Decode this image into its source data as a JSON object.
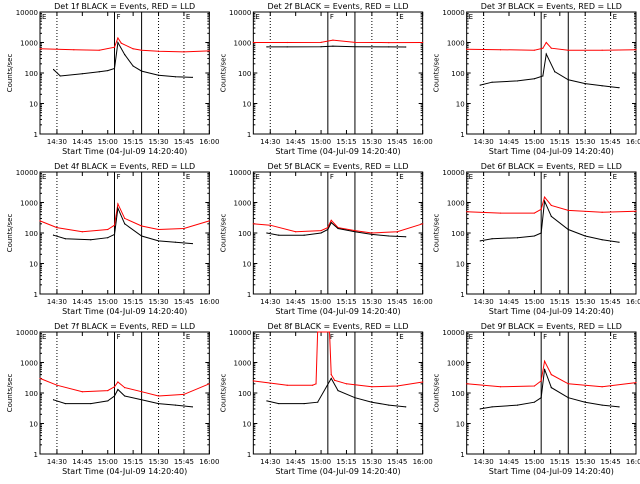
{
  "figure": {
    "grid_rows": 3,
    "grid_cols": 3,
    "colors": {
      "events": "#000000",
      "lld": "#ff0000",
      "axes": "#000000",
      "background": "#ffffff"
    }
  },
  "chart_data": [
    {
      "type": "line",
      "title": "Det 1f BLACK = Events, RED = LLD",
      "xlabel": "Start Time (04-Jul-09 14:20:40)",
      "ylabel": "Counts/sec",
      "yscale": "log",
      "ylim": [
        1,
        10000
      ],
      "xlim": [
        "14:20",
        "16:00"
      ],
      "ytick_labels": [
        "1",
        "10",
        "100",
        "1000",
        "10000"
      ],
      "xtick_labels": [
        "14:30",
        "14:45",
        "15:00",
        "15:15",
        "15:30",
        "15:45",
        "16:00"
      ],
      "marker_labels": {
        "left": "E",
        "mid": "F",
        "right": "E"
      },
      "dotted_lines": [
        "14:30",
        "15:30",
        "15:45"
      ],
      "solid_lines": [
        "15:04",
        "15:20"
      ],
      "series": [
        {
          "name": "Events",
          "color": "#000000",
          "x": [
            "14:28",
            "14:32",
            "14:45",
            "14:55",
            "15:00",
            "15:04",
            "15:06",
            "15:10",
            "15:15",
            "15:20",
            "15:30",
            "15:40",
            "15:50"
          ],
          "values": [
            130,
            80,
            95,
            110,
            120,
            140,
            1000,
            400,
            170,
            115,
            85,
            75,
            72
          ]
        },
        {
          "name": "LLD",
          "color": "#ff0000",
          "x": [
            "14:20",
            "14:40",
            "14:55",
            "15:04",
            "15:06",
            "15:08",
            "15:15",
            "15:20",
            "15:30",
            "15:45",
            "16:00"
          ],
          "values": [
            620,
            580,
            560,
            700,
            1400,
            950,
            620,
            560,
            520,
            490,
            530
          ]
        }
      ]
    },
    {
      "type": "line",
      "title": "Det 2f BLACK = Events, RED = LLD",
      "xlabel": "Start Time (04-Jul-09 14:20:40)",
      "ylabel": "Counts/sec",
      "yscale": "log",
      "ylim": [
        1,
        10000
      ],
      "xlim": [
        "14:20",
        "16:00"
      ],
      "ytick_labels": [
        "1",
        "10",
        "100",
        "1000",
        "10000"
      ],
      "xtick_labels": [
        "14:30",
        "14:45",
        "15:00",
        "15:15",
        "15:30",
        "15:45",
        "16:00"
      ],
      "marker_labels": {
        "left": "E",
        "mid": "F",
        "right": "E"
      },
      "dotted_lines": [
        "14:30",
        "15:30",
        "15:45"
      ],
      "solid_lines": [
        "15:04",
        "15:20"
      ],
      "series": [
        {
          "name": "Events",
          "color": "#000000",
          "x": [
            "14:28",
            "14:40",
            "15:00",
            "15:07",
            "15:20",
            "15:40",
            "15:50"
          ],
          "values": [
            720,
            720,
            730,
            760,
            730,
            720,
            710
          ]
        },
        {
          "name": "LLD",
          "color": "#ff0000",
          "x": [
            "14:20",
            "14:40",
            "15:00",
            "15:07",
            "15:20",
            "15:40",
            "16:00"
          ],
          "values": [
            1000,
            1000,
            1010,
            1200,
            1010,
            990,
            1000
          ]
        }
      ]
    },
    {
      "type": "line",
      "title": "Det 3f BLACK = Events, RED = LLD",
      "xlabel": "Start Time (04-Jul-09 14:20:40)",
      "ylabel": "Counts/sec",
      "yscale": "log",
      "ylim": [
        1,
        10000
      ],
      "xlim": [
        "14:20",
        "16:00"
      ],
      "ytick_labels": [
        "1",
        "10",
        "100",
        "1000",
        "10000"
      ],
      "xtick_labels": [
        "14:30",
        "14:45",
        "15:00",
        "15:15",
        "15:30",
        "15:45",
        "16:00"
      ],
      "marker_labels": {
        "left": "E",
        "mid": "F",
        "right": "E"
      },
      "dotted_lines": [
        "14:30",
        "15:30",
        "15:45"
      ],
      "solid_lines": [
        "15:04",
        "15:20"
      ],
      "series": [
        {
          "name": "Events",
          "color": "#000000",
          "x": [
            "14:28",
            "14:35",
            "14:50",
            "15:00",
            "15:05",
            "15:07",
            "15:12",
            "15:20",
            "15:30",
            "15:40",
            "15:50"
          ],
          "values": [
            40,
            50,
            55,
            65,
            80,
            420,
            110,
            60,
            45,
            38,
            33
          ]
        },
        {
          "name": "LLD",
          "color": "#ff0000",
          "x": [
            "14:20",
            "14:40",
            "15:00",
            "15:05",
            "15:07",
            "15:10",
            "15:20",
            "15:40",
            "16:00"
          ],
          "values": [
            600,
            580,
            560,
            650,
            1000,
            650,
            560,
            560,
            580
          ]
        }
      ]
    },
    {
      "type": "line",
      "title": "Det 4f BLACK = Events, RED = LLD",
      "xlabel": "Start Time (04-Jul-09 14:20:40)",
      "ylabel": "Counts/sec",
      "yscale": "log",
      "ylim": [
        1,
        10000
      ],
      "xlim": [
        "14:20",
        "16:00"
      ],
      "ytick_labels": [
        "1",
        "10",
        "100",
        "1000",
        "10000"
      ],
      "xtick_labels": [
        "14:30",
        "14:45",
        "15:00",
        "15:15",
        "15:30",
        "15:45",
        "16:00"
      ],
      "marker_labels": {
        "left": "E",
        "mid": "F",
        "right": "E"
      },
      "dotted_lines": [
        "14:30",
        "15:30",
        "15:45"
      ],
      "solid_lines": [
        "15:04",
        "15:20"
      ],
      "series": [
        {
          "name": "Events",
          "color": "#000000",
          "x": [
            "14:28",
            "14:35",
            "14:50",
            "15:00",
            "15:04",
            "15:06",
            "15:10",
            "15:20",
            "15:30",
            "15:40",
            "15:50"
          ],
          "values": [
            85,
            65,
            60,
            70,
            90,
            650,
            200,
            80,
            55,
            50,
            45
          ]
        },
        {
          "name": "LLD",
          "color": "#ff0000",
          "x": [
            "14:20",
            "14:30",
            "14:45",
            "15:00",
            "15:04",
            "15:06",
            "15:10",
            "15:20",
            "15:30",
            "15:45",
            "16:00"
          ],
          "values": [
            250,
            150,
            110,
            130,
            180,
            900,
            300,
            170,
            130,
            140,
            250
          ]
        }
      ]
    },
    {
      "type": "line",
      "title": "Det 5f BLACK = Events, RED = LLD",
      "xlabel": "Start Time (04-Jul-09 14:20:40)",
      "ylabel": "Counts/sec",
      "yscale": "log",
      "ylim": [
        1,
        10000
      ],
      "xlim": [
        "14:20",
        "16:00"
      ],
      "ytick_labels": [
        "1",
        "10",
        "100",
        "1000",
        "10000"
      ],
      "xtick_labels": [
        "14:30",
        "14:45",
        "15:00",
        "15:15",
        "15:30",
        "15:45",
        "16:00"
      ],
      "marker_labels": {
        "left": "E",
        "mid": "F",
        "right": "E"
      },
      "dotted_lines": [
        "14:30",
        "15:30",
        "15:45"
      ],
      "solid_lines": [
        "15:04",
        "15:20"
      ],
      "series": [
        {
          "name": "Events",
          "color": "#000000",
          "x": [
            "14:28",
            "14:35",
            "14:50",
            "15:00",
            "15:04",
            "15:06",
            "15:10",
            "15:20",
            "15:30",
            "15:40",
            "15:50"
          ],
          "values": [
            100,
            85,
            85,
            100,
            130,
            220,
            140,
            110,
            90,
            80,
            75
          ]
        },
        {
          "name": "LLD",
          "color": "#ff0000",
          "x": [
            "14:20",
            "14:30",
            "14:45",
            "15:00",
            "15:04",
            "15:06",
            "15:10",
            "15:20",
            "15:30",
            "15:45",
            "16:00"
          ],
          "values": [
            200,
            180,
            110,
            120,
            150,
            260,
            150,
            120,
            100,
            110,
            200
          ]
        }
      ]
    },
    {
      "type": "line",
      "title": "Det 6f BLACK = Events, RED = LLD",
      "xlabel": "Start Time (04-Jul-09 14:20:40)",
      "ylabel": "Counts/sec",
      "yscale": "log",
      "ylim": [
        1,
        10000
      ],
      "xlim": [
        "14:20",
        "16:00"
      ],
      "ytick_labels": [
        "1",
        "10",
        "100",
        "1000",
        "10000"
      ],
      "xtick_labels": [
        "14:30",
        "14:45",
        "15:00",
        "15:15",
        "15:30",
        "15:45",
        "16:00"
      ],
      "marker_labels": {
        "left": "E",
        "mid": "F",
        "right": "E"
      },
      "dotted_lines": [
        "14:30",
        "15:30",
        "15:45"
      ],
      "solid_lines": [
        "15:04",
        "15:20"
      ],
      "series": [
        {
          "name": "Events",
          "color": "#000000",
          "x": [
            "14:28",
            "14:35",
            "14:50",
            "15:00",
            "15:04",
            "15:06",
            "15:10",
            "15:20",
            "15:30",
            "15:40",
            "15:50"
          ],
          "values": [
            55,
            65,
            70,
            80,
            100,
            1100,
            350,
            130,
            80,
            60,
            50
          ]
        },
        {
          "name": "LLD",
          "color": "#ff0000",
          "x": [
            "14:20",
            "14:40",
            "15:00",
            "15:04",
            "15:06",
            "15:10",
            "15:20",
            "15:40",
            "16:00"
          ],
          "values": [
            500,
            450,
            450,
            600,
            1500,
            800,
            550,
            480,
            520
          ]
        }
      ]
    },
    {
      "type": "line",
      "title": "Det 7f BLACK = Events, RED = LLD",
      "xlabel": "Start Time (04-Jul-09 14:20:40)",
      "ylabel": "Counts/sec",
      "yscale": "log",
      "ylim": [
        1,
        10000
      ],
      "xlim": [
        "14:20",
        "16:00"
      ],
      "ytick_labels": [
        "1",
        "10",
        "100",
        "1000",
        "10000"
      ],
      "xtick_labels": [
        "14:30",
        "14:45",
        "15:00",
        "15:15",
        "15:30",
        "15:45",
        "16:00"
      ],
      "marker_labels": {
        "left": "E",
        "mid": "F",
        "right": "E"
      },
      "dotted_lines": [
        "14:30",
        "15:30",
        "15:45"
      ],
      "solid_lines": [
        "15:04",
        "15:20"
      ],
      "series": [
        {
          "name": "Events",
          "color": "#000000",
          "x": [
            "14:28",
            "14:35",
            "14:50",
            "15:00",
            "15:04",
            "15:06",
            "15:10",
            "15:20",
            "15:30",
            "15:40",
            "15:50"
          ],
          "values": [
            60,
            45,
            45,
            55,
            80,
            130,
            80,
            60,
            45,
            40,
            35
          ]
        },
        {
          "name": "LLD",
          "color": "#ff0000",
          "x": [
            "14:20",
            "14:30",
            "14:45",
            "15:00",
            "15:04",
            "15:06",
            "15:10",
            "15:20",
            "15:30",
            "15:45",
            "16:00"
          ],
          "values": [
            300,
            180,
            110,
            120,
            160,
            230,
            150,
            110,
            80,
            90,
            200
          ]
        }
      ]
    },
    {
      "type": "line",
      "title": "Det 8f BLACK = Events, RED = LLD",
      "xlabel": "Start Time (04-Jul-09 14:20:40)",
      "ylabel": "Counts/sec",
      "yscale": "log",
      "ylim": [
        1,
        10000
      ],
      "xlim": [
        "14:20",
        "16:00"
      ],
      "ytick_labels": [
        "1",
        "10",
        "100",
        "1000",
        "10000"
      ],
      "xtick_labels": [
        "14:30",
        "14:45",
        "15:00",
        "15:15",
        "15:30",
        "15:45",
        "16:00"
      ],
      "marker_labels": {
        "left": "E",
        "mid": "F",
        "right": "E"
      },
      "dotted_lines": [
        "14:30",
        "15:30",
        "15:45"
      ],
      "solid_lines": [
        "15:04",
        "15:20"
      ],
      "series": [
        {
          "name": "Events",
          "color": "#000000",
          "x": [
            "14:28",
            "14:35",
            "14:50",
            "14:58",
            "15:06",
            "15:10",
            "15:20",
            "15:30",
            "15:40",
            "15:50"
          ],
          "values": [
            55,
            45,
            45,
            50,
            300,
            120,
            70,
            50,
            40,
            35
          ]
        },
        {
          "name": "LLD",
          "color": "#ff0000",
          "x": [
            "14:20",
            "14:40",
            "14:55",
            "14:57",
            "14:58",
            "15:05",
            "15:06",
            "15:08",
            "15:15",
            "15:30",
            "15:45",
            "16:00"
          ],
          "values": [
            250,
            180,
            180,
            200,
            10000,
            10000,
            400,
            260,
            200,
            160,
            170,
            230
          ]
        }
      ]
    },
    {
      "type": "line",
      "title": "Det 9f BLACK = Events, RED = LLD",
      "xlabel": "Start Time (04-Jul-09 14:20:40)",
      "ylabel": "Counts/sec",
      "yscale": "log",
      "ylim": [
        1,
        10000
      ],
      "xlim": [
        "14:20",
        "16:00"
      ],
      "ytick_labels": [
        "1",
        "10",
        "100",
        "1000",
        "10000"
      ],
      "xtick_labels": [
        "14:30",
        "14:45",
        "15:00",
        "15:15",
        "15:30",
        "15:45",
        "16:00"
      ],
      "marker_labels": {
        "left": "E",
        "mid": "F",
        "right": "E"
      },
      "dotted_lines": [
        "14:30",
        "15:30",
        "15:45"
      ],
      "solid_lines": [
        "15:04",
        "15:20"
      ],
      "series": [
        {
          "name": "Events",
          "color": "#000000",
          "x": [
            "14:28",
            "14:35",
            "14:50",
            "15:00",
            "15:04",
            "15:06",
            "15:10",
            "15:20",
            "15:30",
            "15:40",
            "15:50"
          ],
          "values": [
            30,
            35,
            40,
            50,
            70,
            600,
            150,
            70,
            50,
            40,
            35
          ]
        },
        {
          "name": "LLD",
          "color": "#ff0000",
          "x": [
            "14:20",
            "14:40",
            "15:00",
            "15:04",
            "15:06",
            "15:10",
            "15:20",
            "15:40",
            "16:00"
          ],
          "values": [
            200,
            160,
            170,
            250,
            1100,
            400,
            200,
            160,
            220
          ]
        }
      ]
    }
  ]
}
